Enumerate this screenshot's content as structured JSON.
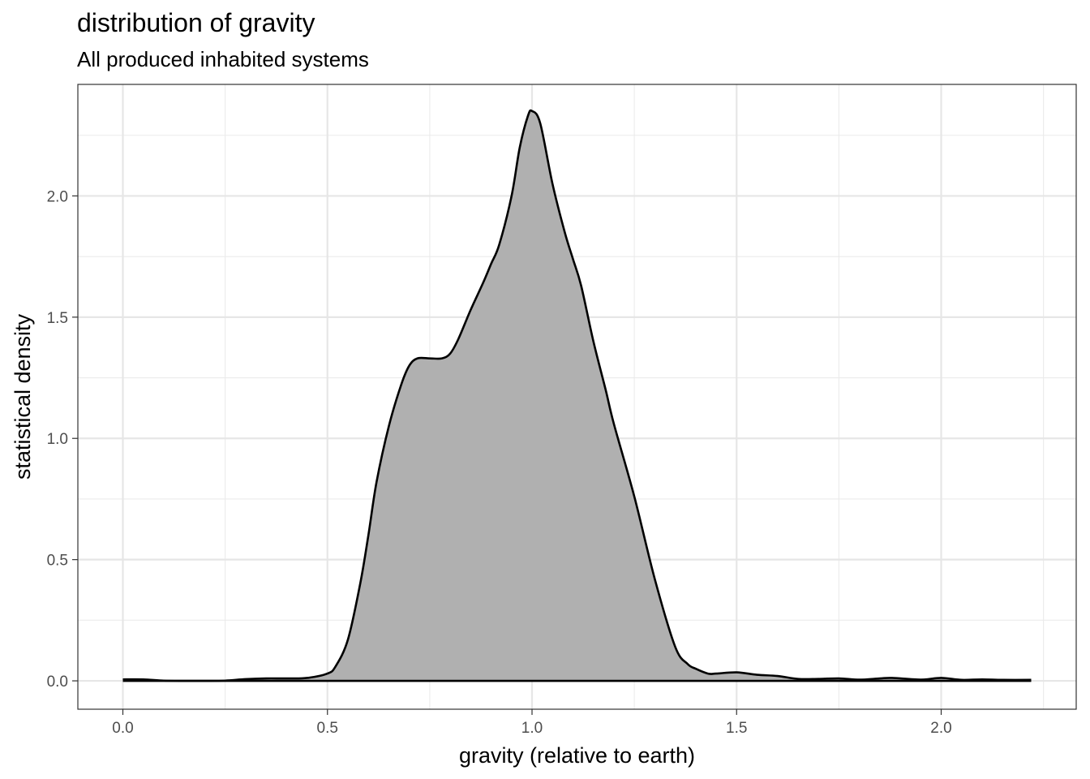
{
  "chart_data": {
    "type": "area",
    "title": "distribution of gravity",
    "subtitle": "All produced inhabited systems",
    "xlabel": "gravity (relative to earth)",
    "ylabel": "statistical density",
    "xlim": [
      -0.11,
      2.33
    ],
    "ylim": [
      -0.117,
      2.46
    ],
    "x_ticks": [
      0.0,
      0.5,
      1.0,
      1.5,
      2.0
    ],
    "x_tick_labels": [
      "0.0",
      "0.5",
      "1.0",
      "1.5",
      "2.0"
    ],
    "y_ticks": [
      0.0,
      0.5,
      1.0,
      1.5,
      2.0
    ],
    "y_tick_labels": [
      "0.0",
      "0.5",
      "1.0",
      "1.5",
      "2.0"
    ],
    "grid": true,
    "fill_color": "#b0b0b0",
    "line_color": "#000000",
    "series": [
      {
        "x": [
          0.0,
          0.05,
          0.1,
          0.15,
          0.2,
          0.25,
          0.3,
          0.35,
          0.4,
          0.45,
          0.5,
          0.52,
          0.55,
          0.58,
          0.6,
          0.62,
          0.65,
          0.68,
          0.7,
          0.72,
          0.75,
          0.78,
          0.8,
          0.82,
          0.85,
          0.88,
          0.9,
          0.92,
          0.95,
          0.97,
          0.99,
          1.0,
          1.02,
          1.05,
          1.08,
          1.1,
          1.12,
          1.15,
          1.18,
          1.2,
          1.25,
          1.3,
          1.35,
          1.38,
          1.4,
          1.43,
          1.45,
          1.5,
          1.55,
          1.6,
          1.65,
          1.7,
          1.75,
          1.8,
          1.85,
          1.88,
          1.95,
          2.0,
          2.05,
          2.1,
          2.15,
          2.22
        ],
        "y": [
          0.006,
          0.006,
          0.001,
          0.0,
          0.0,
          0.001,
          0.007,
          0.01,
          0.01,
          0.012,
          0.03,
          0.06,
          0.17,
          0.4,
          0.6,
          0.82,
          1.05,
          1.22,
          1.3,
          1.33,
          1.33,
          1.33,
          1.35,
          1.41,
          1.53,
          1.64,
          1.72,
          1.8,
          2.0,
          2.2,
          2.33,
          2.35,
          2.3,
          2.05,
          1.85,
          1.74,
          1.63,
          1.4,
          1.2,
          1.06,
          0.76,
          0.42,
          0.14,
          0.07,
          0.05,
          0.03,
          0.03,
          0.035,
          0.025,
          0.02,
          0.008,
          0.008,
          0.01,
          0.005,
          0.01,
          0.012,
          0.005,
          0.012,
          0.004,
          0.006,
          0.004,
          0.004
        ]
      }
    ]
  }
}
